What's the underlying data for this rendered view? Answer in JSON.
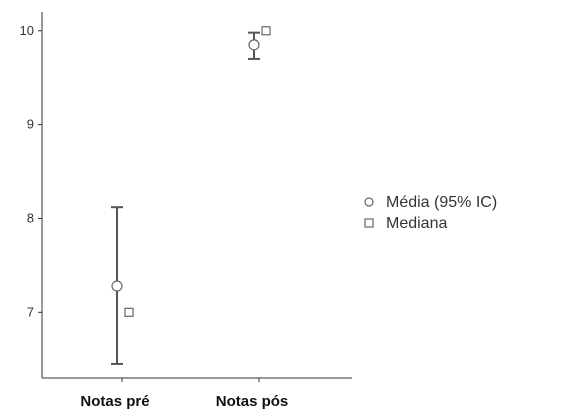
{
  "chart_data": {
    "type": "scatter",
    "categories": [
      "Notas pré",
      "Notas pós"
    ],
    "ylim": [
      6.3,
      10.2
    ],
    "yticks": [
      7,
      8,
      9,
      10
    ],
    "grid": false,
    "legend_position": "right",
    "series": [
      {
        "name": "Média (95% IC)",
        "marker": "circle",
        "values": [
          7.28,
          9.85
        ],
        "ci_low": [
          6.45,
          9.7
        ],
        "ci_high": [
          8.12,
          9.98
        ]
      },
      {
        "name": "Mediana",
        "marker": "square",
        "values": [
          7.0,
          10.0
        ]
      }
    ],
    "colors": {
      "axis": "#333333",
      "errorbar": "#555555",
      "marker_stroke": "#666666",
      "marker_fill": "#ffffff"
    }
  }
}
